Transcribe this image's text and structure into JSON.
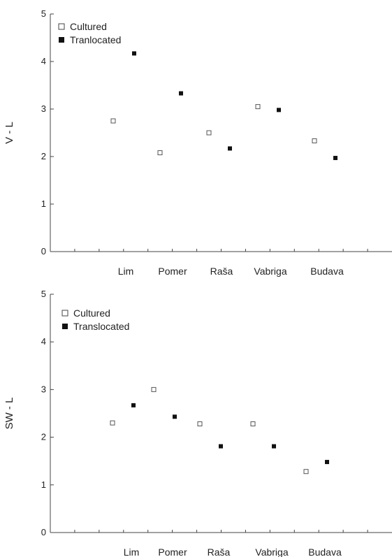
{
  "chart_data": [
    {
      "type": "scatter",
      "ylabel": "V - L",
      "xlabel": "",
      "ylim": [
        0,
        5
      ],
      "yticks": [
        0,
        1,
        2,
        3,
        4,
        5
      ],
      "categories": [
        "Lim",
        "Pomer",
        "Raša",
        "Vabriga",
        "Budava"
      ],
      "legend": {
        "placement": "top-left"
      },
      "series": [
        {
          "name": "Cultured",
          "marker": "open-square",
          "values": [
            2.75,
            2.08,
            2.5,
            3.05,
            2.33
          ]
        },
        {
          "name": "Tranlocated",
          "marker": "filled-square",
          "values": [
            4.17,
            3.33,
            2.17,
            2.98,
            1.97
          ]
        }
      ]
    },
    {
      "type": "scatter",
      "ylabel": "SW - L",
      "xlabel": "",
      "ylim": [
        0,
        5
      ],
      "yticks": [
        0,
        1,
        2,
        3,
        4,
        5
      ],
      "categories": [
        "Lim",
        "Pomer",
        "Raša",
        "Vabriga",
        "Budava"
      ],
      "legend": {
        "placement": "top-left"
      },
      "series": [
        {
          "name": "Cultured",
          "marker": "open-square",
          "values": [
            2.3,
            3.0,
            2.28,
            2.28,
            1.28
          ]
        },
        {
          "name": "Translocated",
          "marker": "filled-square",
          "values": [
            2.67,
            2.43,
            1.81,
            1.81,
            1.48
          ]
        }
      ]
    }
  ]
}
